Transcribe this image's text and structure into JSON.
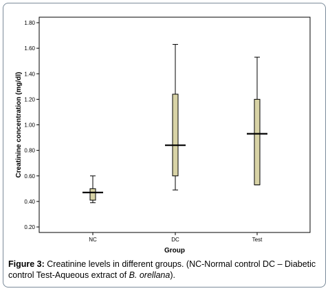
{
  "chart_data": {
    "type": "boxplot",
    "xlabel": "Group",
    "ylabel": "Creatinine concentration (mg/dl)",
    "ylim": [
      0.2,
      1.8
    ],
    "yticks": [
      0.2,
      0.4,
      0.6,
      0.8,
      1.0,
      1.2,
      1.4,
      1.6,
      1.8
    ],
    "ytick_labels": [
      "0.20",
      "0.40",
      "0.60",
      "0.80",
      "1.00",
      "1.20",
      "1.40",
      "1.60",
      "1.80"
    ],
    "categories": [
      "NC",
      "DC",
      "Test"
    ],
    "boxes": [
      {
        "category": "NC",
        "min": 0.39,
        "q1": 0.41,
        "median": 0.47,
        "q3": 0.5,
        "max": 0.6
      },
      {
        "category": "DC",
        "min": 0.49,
        "q1": 0.6,
        "median": 0.84,
        "q3": 1.24,
        "max": 1.63
      },
      {
        "category": "Test",
        "min": 0.53,
        "q1": 0.53,
        "median": 0.93,
        "q3": 1.2,
        "max": 1.53
      }
    ],
    "colors": {
      "box_fill": "#d8d3a6",
      "box_stroke": "#000000",
      "axis": "#000000"
    },
    "grid": false
  },
  "caption": {
    "label": "Figure 3:",
    "text_before": " Creatinine levels in different groups. (NC-Normal control DC – Diabetic control Test-Aqueous extract of ",
    "italic": "B. orellana",
    "text_after": ")."
  }
}
